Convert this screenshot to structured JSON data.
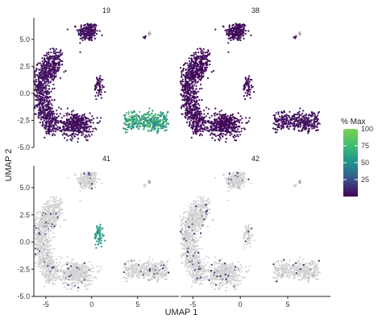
{
  "chart_data": {
    "type": "scatter",
    "xlabel": "UMAP 1",
    "ylabel": "UMAP 2",
    "xlim": [
      -6.3,
      9.5
    ],
    "ylim": [
      -5.0,
      7.0
    ],
    "xticks": [
      -5,
      0,
      5
    ],
    "yticks": [
      -5.0,
      -2.5,
      0.0,
      2.5,
      5.0
    ],
    "xtick_labels": [
      "-5",
      "0",
      "5"
    ],
    "ytick_labels": [
      "-5.0",
      "-2.5",
      "0.0",
      "2.5",
      "5.0"
    ],
    "panels": [
      {
        "title": "19",
        "mode": "all",
        "cluster_level": 90,
        "arm_level": 10,
        "hot_pct": 8
      },
      {
        "title": "38",
        "mode": "all",
        "cluster_level": 8,
        "arm_level": 6,
        "hot_pct": 0
      },
      {
        "title": "41",
        "mode": "sparse",
        "cluster_level": 20,
        "arm_level": 55,
        "hot_pct": 3
      },
      {
        "title": "42",
        "mode": "sparse",
        "cluster_level": 10,
        "arm_level": 10,
        "hot_pct": 1
      }
    ],
    "annotations": [
      {
        "text": "6",
        "x": 5.8,
        "y": 5.3
      }
    ],
    "legend": {
      "title": "% Max",
      "position": "right",
      "ticks": [
        25,
        50,
        75,
        100
      ],
      "tick_labels": [
        "25",
        "50",
        "75",
        "100"
      ],
      "min": 0,
      "max": 100,
      "colors": [
        "#440154",
        "#3b528b",
        "#21918c",
        "#5ec962",
        "#7ad151"
      ]
    },
    "background_color": "#d3d3d3",
    "grid": false
  }
}
